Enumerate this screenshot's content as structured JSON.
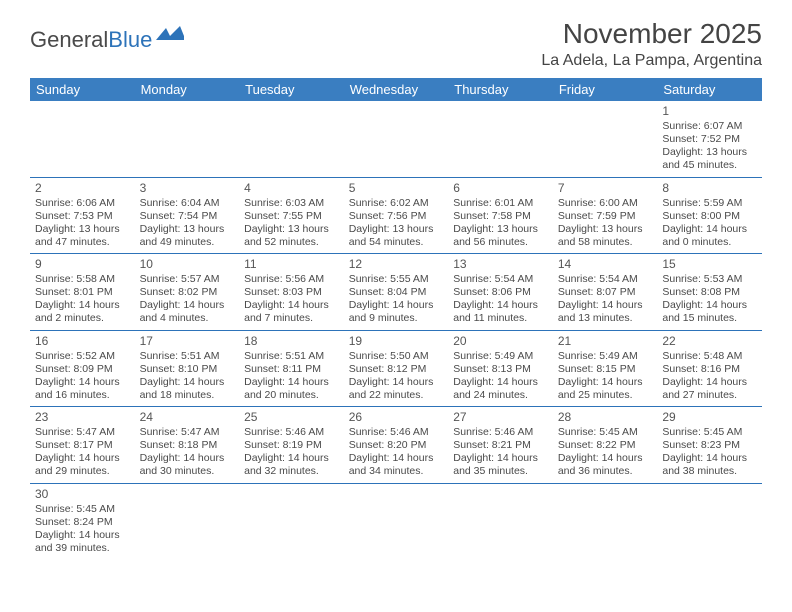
{
  "logo": {
    "word1": "General",
    "word2": "Blue"
  },
  "title": "November 2025",
  "location": "La Adela, La Pampa, Argentina",
  "colors": {
    "header_bg": "#3a7ec1",
    "header_text": "#ffffff",
    "border": "#2d73b9",
    "text": "#4a4a4a",
    "title": "#444444",
    "logo_gray": "#4a4a4a",
    "logo_blue": "#2d73b9",
    "background": "#ffffff"
  },
  "fonts": {
    "title_size": 28,
    "location_size": 16,
    "header_size": 13,
    "cell_size": 10.5,
    "daynum_size": 12
  },
  "day_headers": [
    "Sunday",
    "Monday",
    "Tuesday",
    "Wednesday",
    "Thursday",
    "Friday",
    "Saturday"
  ],
  "weeks": [
    [
      {
        "n": "",
        "sr": "",
        "ss": "",
        "dl": ""
      },
      {
        "n": "",
        "sr": "",
        "ss": "",
        "dl": ""
      },
      {
        "n": "",
        "sr": "",
        "ss": "",
        "dl": ""
      },
      {
        "n": "",
        "sr": "",
        "ss": "",
        "dl": ""
      },
      {
        "n": "",
        "sr": "",
        "ss": "",
        "dl": ""
      },
      {
        "n": "",
        "sr": "",
        "ss": "",
        "dl": ""
      },
      {
        "n": "1",
        "sr": "Sunrise: 6:07 AM",
        "ss": "Sunset: 7:52 PM",
        "dl": "Daylight: 13 hours and 45 minutes."
      }
    ],
    [
      {
        "n": "2",
        "sr": "Sunrise: 6:06 AM",
        "ss": "Sunset: 7:53 PM",
        "dl": "Daylight: 13 hours and 47 minutes."
      },
      {
        "n": "3",
        "sr": "Sunrise: 6:04 AM",
        "ss": "Sunset: 7:54 PM",
        "dl": "Daylight: 13 hours and 49 minutes."
      },
      {
        "n": "4",
        "sr": "Sunrise: 6:03 AM",
        "ss": "Sunset: 7:55 PM",
        "dl": "Daylight: 13 hours and 52 minutes."
      },
      {
        "n": "5",
        "sr": "Sunrise: 6:02 AM",
        "ss": "Sunset: 7:56 PM",
        "dl": "Daylight: 13 hours and 54 minutes."
      },
      {
        "n": "6",
        "sr": "Sunrise: 6:01 AM",
        "ss": "Sunset: 7:58 PM",
        "dl": "Daylight: 13 hours and 56 minutes."
      },
      {
        "n": "7",
        "sr": "Sunrise: 6:00 AM",
        "ss": "Sunset: 7:59 PM",
        "dl": "Daylight: 13 hours and 58 minutes."
      },
      {
        "n": "8",
        "sr": "Sunrise: 5:59 AM",
        "ss": "Sunset: 8:00 PM",
        "dl": "Daylight: 14 hours and 0 minutes."
      }
    ],
    [
      {
        "n": "9",
        "sr": "Sunrise: 5:58 AM",
        "ss": "Sunset: 8:01 PM",
        "dl": "Daylight: 14 hours and 2 minutes."
      },
      {
        "n": "10",
        "sr": "Sunrise: 5:57 AM",
        "ss": "Sunset: 8:02 PM",
        "dl": "Daylight: 14 hours and 4 minutes."
      },
      {
        "n": "11",
        "sr": "Sunrise: 5:56 AM",
        "ss": "Sunset: 8:03 PM",
        "dl": "Daylight: 14 hours and 7 minutes."
      },
      {
        "n": "12",
        "sr": "Sunrise: 5:55 AM",
        "ss": "Sunset: 8:04 PM",
        "dl": "Daylight: 14 hours and 9 minutes."
      },
      {
        "n": "13",
        "sr": "Sunrise: 5:54 AM",
        "ss": "Sunset: 8:06 PM",
        "dl": "Daylight: 14 hours and 11 minutes."
      },
      {
        "n": "14",
        "sr": "Sunrise: 5:54 AM",
        "ss": "Sunset: 8:07 PM",
        "dl": "Daylight: 14 hours and 13 minutes."
      },
      {
        "n": "15",
        "sr": "Sunrise: 5:53 AM",
        "ss": "Sunset: 8:08 PM",
        "dl": "Daylight: 14 hours and 15 minutes."
      }
    ],
    [
      {
        "n": "16",
        "sr": "Sunrise: 5:52 AM",
        "ss": "Sunset: 8:09 PM",
        "dl": "Daylight: 14 hours and 16 minutes."
      },
      {
        "n": "17",
        "sr": "Sunrise: 5:51 AM",
        "ss": "Sunset: 8:10 PM",
        "dl": "Daylight: 14 hours and 18 minutes."
      },
      {
        "n": "18",
        "sr": "Sunrise: 5:51 AM",
        "ss": "Sunset: 8:11 PM",
        "dl": "Daylight: 14 hours and 20 minutes."
      },
      {
        "n": "19",
        "sr": "Sunrise: 5:50 AM",
        "ss": "Sunset: 8:12 PM",
        "dl": "Daylight: 14 hours and 22 minutes."
      },
      {
        "n": "20",
        "sr": "Sunrise: 5:49 AM",
        "ss": "Sunset: 8:13 PM",
        "dl": "Daylight: 14 hours and 24 minutes."
      },
      {
        "n": "21",
        "sr": "Sunrise: 5:49 AM",
        "ss": "Sunset: 8:15 PM",
        "dl": "Daylight: 14 hours and 25 minutes."
      },
      {
        "n": "22",
        "sr": "Sunrise: 5:48 AM",
        "ss": "Sunset: 8:16 PM",
        "dl": "Daylight: 14 hours and 27 minutes."
      }
    ],
    [
      {
        "n": "23",
        "sr": "Sunrise: 5:47 AM",
        "ss": "Sunset: 8:17 PM",
        "dl": "Daylight: 14 hours and 29 minutes."
      },
      {
        "n": "24",
        "sr": "Sunrise: 5:47 AM",
        "ss": "Sunset: 8:18 PM",
        "dl": "Daylight: 14 hours and 30 minutes."
      },
      {
        "n": "25",
        "sr": "Sunrise: 5:46 AM",
        "ss": "Sunset: 8:19 PM",
        "dl": "Daylight: 14 hours and 32 minutes."
      },
      {
        "n": "26",
        "sr": "Sunrise: 5:46 AM",
        "ss": "Sunset: 8:20 PM",
        "dl": "Daylight: 14 hours and 34 minutes."
      },
      {
        "n": "27",
        "sr": "Sunrise: 5:46 AM",
        "ss": "Sunset: 8:21 PM",
        "dl": "Daylight: 14 hours and 35 minutes."
      },
      {
        "n": "28",
        "sr": "Sunrise: 5:45 AM",
        "ss": "Sunset: 8:22 PM",
        "dl": "Daylight: 14 hours and 36 minutes."
      },
      {
        "n": "29",
        "sr": "Sunrise: 5:45 AM",
        "ss": "Sunset: 8:23 PM",
        "dl": "Daylight: 14 hours and 38 minutes."
      }
    ],
    [
      {
        "n": "30",
        "sr": "Sunrise: 5:45 AM",
        "ss": "Sunset: 8:24 PM",
        "dl": "Daylight: 14 hours and 39 minutes."
      },
      {
        "n": "",
        "sr": "",
        "ss": "",
        "dl": ""
      },
      {
        "n": "",
        "sr": "",
        "ss": "",
        "dl": ""
      },
      {
        "n": "",
        "sr": "",
        "ss": "",
        "dl": ""
      },
      {
        "n": "",
        "sr": "",
        "ss": "",
        "dl": ""
      },
      {
        "n": "",
        "sr": "",
        "ss": "",
        "dl": ""
      },
      {
        "n": "",
        "sr": "",
        "ss": "",
        "dl": ""
      }
    ]
  ]
}
